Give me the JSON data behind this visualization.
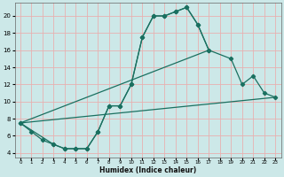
{
  "title": "",
  "xlabel": "Humidex (Indice chaleur)",
  "bg_color": "#cce8e8",
  "grid_color": "#e8b0b0",
  "line_color": "#1a7060",
  "xlim": [
    -0.5,
    23.5
  ],
  "ylim": [
    3.5,
    21.5
  ],
  "xticks": [
    0,
    1,
    2,
    3,
    4,
    5,
    6,
    7,
    8,
    9,
    10,
    11,
    12,
    13,
    14,
    15,
    16,
    17,
    18,
    19,
    20,
    21,
    22,
    23
  ],
  "yticks": [
    4,
    6,
    8,
    10,
    12,
    14,
    16,
    18,
    20
  ],
  "line1_x": [
    0,
    1,
    2,
    3,
    4,
    5,
    6,
    7,
    8,
    9,
    10,
    11,
    12,
    13,
    14,
    15,
    16,
    17
  ],
  "line1_y": [
    7.5,
    6.5,
    5.5,
    5.0,
    4.5,
    4.5,
    4.5,
    6.5,
    9.5,
    9.5,
    12.0,
    17.5,
    20.0,
    20.0,
    20.5,
    21.0,
    19.0,
    16.0
  ],
  "line2_x": [
    0,
    3,
    4,
    5,
    6,
    7,
    8,
    9,
    10,
    11,
    12,
    13,
    14,
    15,
    16,
    17,
    19,
    20,
    21,
    22,
    23
  ],
  "line2_y": [
    7.5,
    5.0,
    4.5,
    4.5,
    4.5,
    6.5,
    9.5,
    9.5,
    12.0,
    17.5,
    20.0,
    20.0,
    20.5,
    21.0,
    19.0,
    16.0,
    15.0,
    12.0,
    13.0,
    11.0,
    10.5
  ],
  "line3_x": [
    0,
    23
  ],
  "line3_y": [
    7.5,
    10.5
  ],
  "line4_x": [
    0,
    17
  ],
  "line4_y": [
    7.5,
    16.0
  ]
}
